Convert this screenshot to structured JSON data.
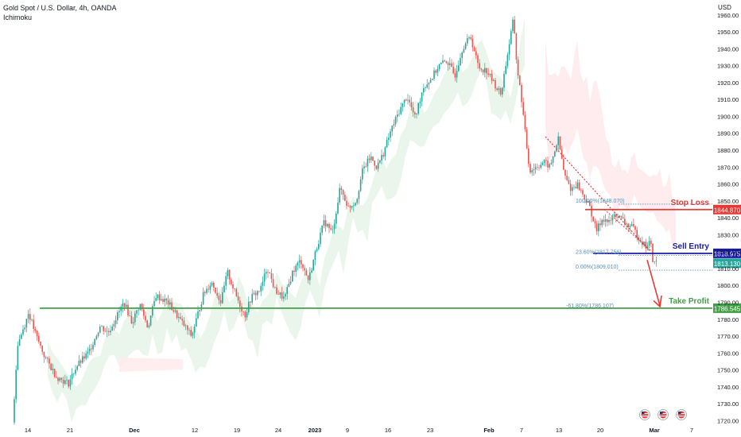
{
  "chart_title": "Gold Spot / U.S. Dollar, 4h, OANDA",
  "indicator": "Ichimoku",
  "chart_data": {
    "type": "candlestick",
    "currency": "USD",
    "ylim": [
      1716,
      1966
    ],
    "y_ticks": [
      1720,
      1730,
      1740,
      1750,
      1760,
      1770,
      1780,
      1790,
      1800,
      1810,
      1820,
      1830,
      1840,
      1850,
      1860,
      1870,
      1880,
      1890,
      1900,
      1910,
      1920,
      1930,
      1940,
      1950,
      1960
    ],
    "x_ticks": [
      "14",
      "21",
      "Dec",
      "12",
      "19",
      "24",
      "2023",
      "9",
      "16",
      "23",
      "Feb",
      "7",
      "13",
      "20",
      "Mar",
      "7"
    ],
    "price_path": [
      [
        0,
        1719
      ],
      [
        6,
        1765
      ],
      [
        12,
        1773
      ],
      [
        16,
        1778
      ],
      [
        20,
        1784
      ],
      [
        28,
        1772
      ],
      [
        40,
        1758
      ],
      [
        55,
        1746
      ],
      [
        70,
        1742
      ],
      [
        80,
        1752
      ],
      [
        95,
        1760
      ],
      [
        110,
        1776
      ],
      [
        120,
        1772
      ],
      [
        140,
        1790
      ],
      [
        150,
        1778
      ],
      [
        160,
        1789
      ],
      [
        170,
        1775
      ],
      [
        180,
        1794
      ],
      [
        195,
        1790
      ],
      [
        210,
        1780
      ],
      [
        225,
        1770
      ],
      [
        240,
        1795
      ],
      [
        250,
        1802
      ],
      [
        262,
        1790
      ],
      [
        270,
        1808
      ],
      [
        280,
        1795
      ],
      [
        292,
        1782
      ],
      [
        300,
        1793
      ],
      [
        312,
        1798
      ],
      [
        320,
        1811
      ],
      [
        330,
        1797
      ],
      [
        342,
        1792
      ],
      [
        352,
        1808
      ],
      [
        362,
        1815
      ],
      [
        372,
        1803
      ],
      [
        382,
        1822
      ],
      [
        392,
        1838
      ],
      [
        402,
        1831
      ],
      [
        412,
        1858
      ],
      [
        422,
        1846
      ],
      [
        432,
        1850
      ],
      [
        440,
        1868
      ],
      [
        450,
        1876
      ],
      [
        458,
        1870
      ],
      [
        466,
        1878
      ],
      [
        476,
        1892
      ],
      [
        486,
        1903
      ],
      [
        496,
        1912
      ],
      [
        506,
        1899
      ],
      [
        516,
        1917
      ],
      [
        526,
        1922
      ],
      [
        536,
        1930
      ],
      [
        546,
        1933
      ],
      [
        556,
        1924
      ],
      [
        566,
        1941
      ],
      [
        576,
        1947
      ],
      [
        586,
        1929
      ],
      [
        596,
        1927
      ],
      [
        606,
        1919
      ],
      [
        614,
        1913
      ],
      [
        622,
        1936
      ],
      [
        630,
        1958
      ],
      [
        634,
        1930
      ],
      [
        640,
        1910
      ],
      [
        644,
        1892
      ],
      [
        650,
        1868
      ],
      [
        658,
        1870
      ],
      [
        668,
        1873
      ],
      [
        676,
        1870
      ],
      [
        686,
        1887
      ],
      [
        694,
        1865
      ],
      [
        702,
        1857
      ],
      [
        710,
        1860
      ],
      [
        718,
        1853
      ],
      [
        726,
        1846
      ],
      [
        734,
        1832
      ],
      [
        742,
        1840
      ],
      [
        750,
        1837
      ],
      [
        758,
        1842
      ],
      [
        766,
        1839
      ],
      [
        772,
        1836
      ],
      [
        780,
        1834
      ],
      [
        788,
        1828
      ],
      [
        796,
        1823
      ],
      [
        802,
        1826
      ],
      [
        806,
        1812
      ],
      [
        810,
        1815
      ]
    ],
    "levels": [
      {
        "name": "Stop Loss",
        "value": 1844.87,
        "label": "1844.870",
        "color": "#e53935"
      },
      {
        "name": "Sell Entry",
        "value": 1818.975,
        "label": "1818.975",
        "color": "#1a1aa8"
      },
      {
        "name": "Take Profit",
        "value": 1786.545,
        "label": "1786.545",
        "color": "#43a047"
      }
    ],
    "current_price": {
      "value": 1813.13,
      "label": "1813.130",
      "color": "#26a69a"
    },
    "fibonacci": [
      {
        "label": "100.00%(1848.070)",
        "value": 1848.07
      },
      {
        "label": "23.60%(1817.756)",
        "value": 1817.756
      },
      {
        "label": "0.00%(1809.010)",
        "value": 1809.01
      },
      {
        "label": "-61.80%(1786.107)",
        "value": 1786.107
      }
    ],
    "colors": {
      "up": "#26a69a",
      "down": "#ef5350",
      "cloud_bull": "#e8f5e9",
      "cloud_bear": "#ffebee"
    }
  }
}
